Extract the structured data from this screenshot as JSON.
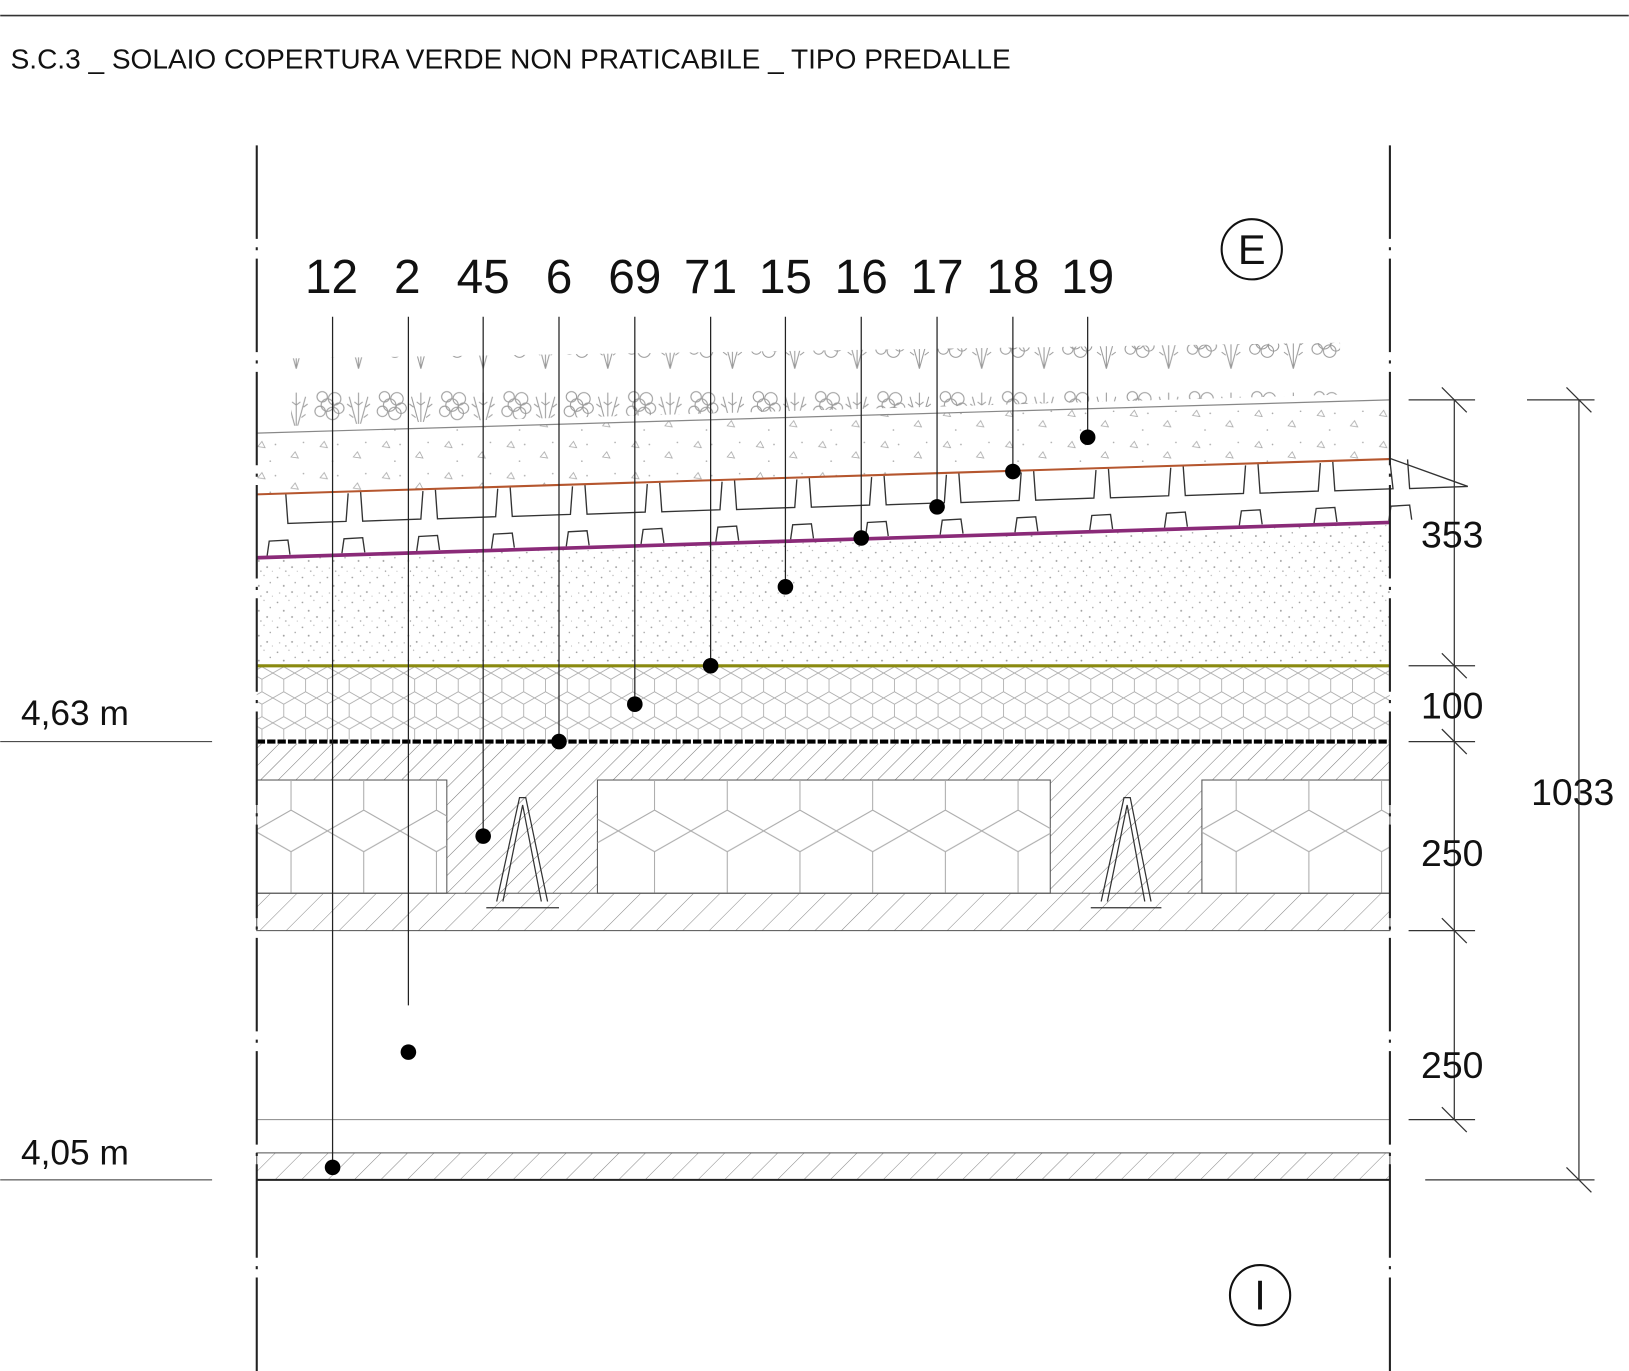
{
  "title": "S.C.3 _ SOLAIO COPERTURA VERDE NON PRATICABILE _ TIPO PREDALLE",
  "callouts": [
    "12",
    "2",
    "45",
    "6",
    "69",
    "71",
    "15",
    "16",
    "17",
    "18",
    "19"
  ],
  "elevations": [
    "4,63 m",
    "4,05 m"
  ],
  "dimensions": [
    "353",
    "100",
    "250",
    "250"
  ],
  "total_dimension": "1033",
  "side_markers": {
    "exterior": "E",
    "interior": "I"
  }
}
